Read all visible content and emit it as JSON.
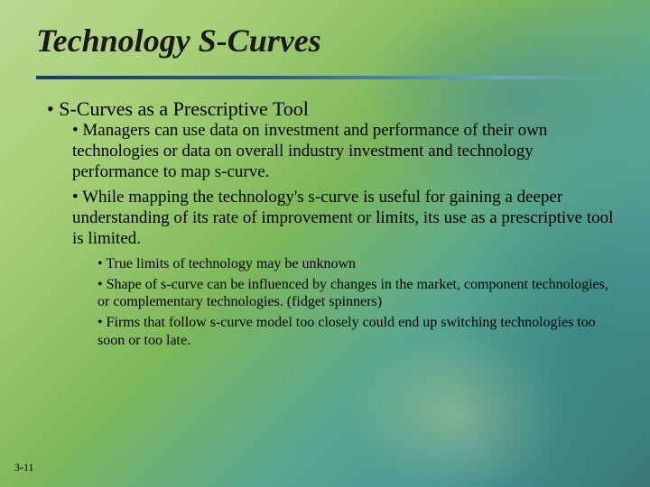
{
  "slide": {
    "title": "Technology S-Curves",
    "number": "3-11",
    "colors": {
      "bg_gradient_stops": [
        "#b8d890",
        "#a8d078",
        "#7eb85a",
        "#5aa890",
        "#4a9898",
        "#3a7878"
      ],
      "divider_stops": [
        "#1a3a6a",
        "#2a5a8a",
        "#6aa8c0"
      ],
      "text": "#000000"
    },
    "typography": {
      "title_fontsize": 36,
      "title_style": "italic bold",
      "lvl1_fontsize": 22,
      "lvl2_fontsize": 19,
      "lvl3_fontsize": 16,
      "family": "Georgia, Times New Roman, serif"
    },
    "bullets": {
      "lvl1": "S-Curves as a Prescriptive Tool",
      "lvl2": [
        "Managers can use data on investment and performance of their own technologies or data on overall industry investment and technology performance to map s-curve.",
        "While mapping the technology's s-curve is useful for gaining a deeper understanding of its rate of improvement or limits, its use as a prescriptive tool is limited."
      ],
      "lvl3": [
        "True limits of technology may be unknown",
        "Shape of s-curve can be influenced by changes in the market, component technologies, or complementary technologies. (fidget spinners)",
        "Firms that follow s-curve model too closely could end up switching technologies too soon or too late."
      ]
    }
  }
}
